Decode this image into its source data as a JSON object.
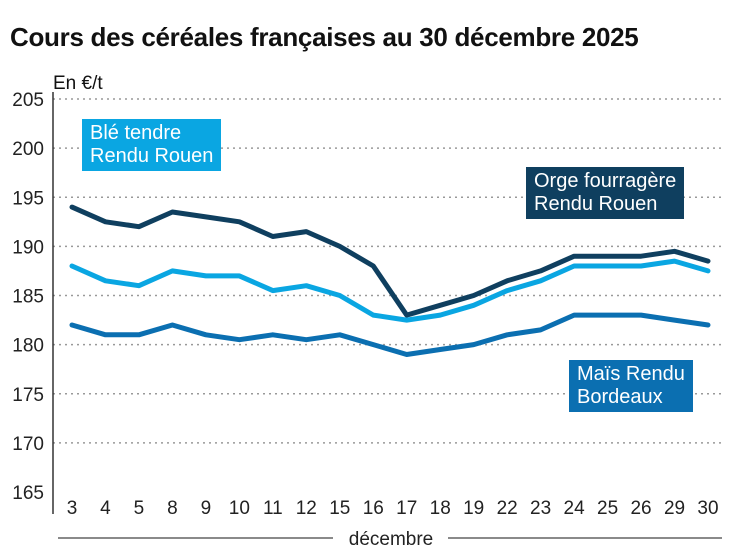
{
  "chart_data": {
    "type": "line",
    "title": "Cours des céréales françaises au 30 décembre 2025",
    "ylabel": "En €/t",
    "xlabel": "décembre",
    "ylim": [
      165,
      205
    ],
    "yticks": [
      165,
      170,
      175,
      180,
      185,
      190,
      195,
      200,
      205
    ],
    "categories": [
      "3",
      "4",
      "5",
      "8",
      "9",
      "10",
      "11",
      "12",
      "15",
      "16",
      "17",
      "18",
      "19",
      "22",
      "23",
      "24",
      "25",
      "26",
      "29",
      "30"
    ],
    "grid": true,
    "series": [
      {
        "name": "Orge fourragère Rendu Rouen",
        "color": "#0f3f5f",
        "values": [
          194,
          192.5,
          192,
          193.5,
          193,
          192.5,
          191,
          191.5,
          190,
          188,
          183,
          184,
          185,
          186.5,
          187.5,
          189,
          189,
          189,
          189.5,
          188.5
        ]
      },
      {
        "name": "Blé tendre Rendu Rouen",
        "color": "#0aa6e2",
        "values": [
          188,
          186.5,
          186,
          187.5,
          187,
          187,
          185.5,
          186,
          185,
          183,
          182.5,
          183,
          184,
          185.5,
          186.5,
          188,
          188,
          188,
          188.5,
          187.5
        ]
      },
      {
        "name": "Maïs Rendu Bordeaux",
        "color": "#0b6fb1",
        "values": [
          182,
          181,
          181,
          182,
          181,
          180.5,
          181,
          180.5,
          181,
          180,
          179,
          179.5,
          180,
          181,
          181.5,
          183,
          183,
          183,
          182.5,
          182
        ]
      }
    ]
  },
  "labels": {
    "ble": [
      "Blé tendre",
      "Rendu Rouen"
    ],
    "orge": [
      "Orge fourragère",
      "Rendu Rouen"
    ],
    "mais": [
      "Maïs Rendu",
      "Bordeaux"
    ]
  }
}
